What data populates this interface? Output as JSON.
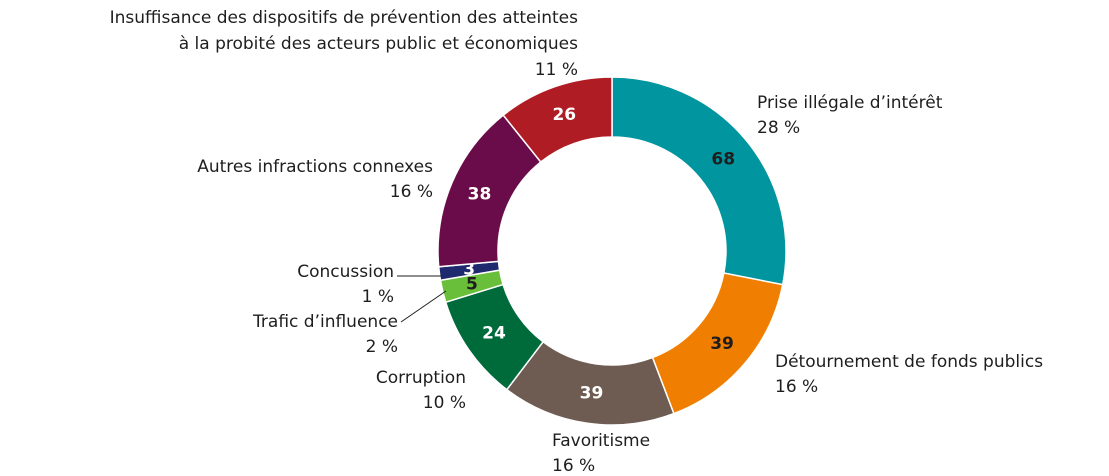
{
  "chart_data": {
    "type": "donut",
    "categories": [
      "Prise illégale d’intérêt",
      "Détournement de fonds publics",
      "Favoritisme",
      "Corruption",
      "Trafic d’influence",
      "Concussion",
      "Autres infractions connexes",
      [
        "Insuffisance des dispositifs de prévention des atteintes",
        "à la probité des acteurs public et économiques"
      ]
    ],
    "values": [
      68,
      39,
      39,
      24,
      5,
      3,
      38,
      26
    ],
    "shares": [
      {
        "value": 28,
        "label": "28 %"
      },
      {
        "value": 16,
        "label": "16 %"
      },
      {
        "value": 16,
        "label": "16 %"
      },
      {
        "value": 10,
        "label": "10 %"
      },
      {
        "value": 2,
        "label": "2 %"
      },
      {
        "value": 1,
        "label": "1 %"
      },
      {
        "value": 16,
        "label": "16 %"
      },
      {
        "value": 11,
        "label": "11 %"
      }
    ],
    "colors": [
      "#00959f",
      "#f07e00",
      "#6e5c52",
      "#006b3a",
      "#6abf3a",
      "#1f2a6e",
      "#6a0c4a",
      "#b01c23"
    ],
    "label_colors": [
      "#1e1e1e",
      "#1e1e1e",
      "#ffffff",
      "#ffffff",
      "#1e1e1e",
      "#ffffff",
      "#ffffff",
      "#ffffff"
    ]
  }
}
